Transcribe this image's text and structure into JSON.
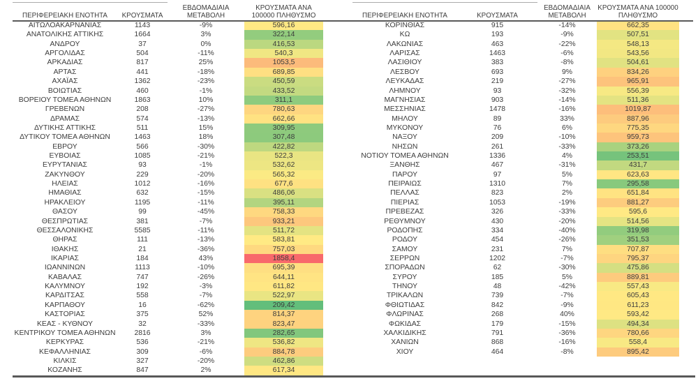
{
  "chart_data": {
    "type": "table",
    "columns": [
      "ΠΕΡΙΦΕΡΕΙΑΚΗ ΕΝΟΤΗΤΑ",
      "ΚΡΟΥΣΜΑΤΑ",
      "ΕΒΔΟΜΑΔΙΑΙΑ ΜΕΤΑΒΟΛΗ",
      "ΚΡΟΥΣΜΑΤΑ ΑΝΑ 100000 ΠΛΗΘΥΣΜΟ"
    ],
    "conditional_formatting": {
      "column": "ΚΡΟΥΣΜΑΤΑ ΑΝΑ 100000 ΠΛΗΘΥΣΜΟ",
      "type": "3-color-scale",
      "min_value": 209.42,
      "mid_value": 574.57,
      "max_value": 1858.4,
      "min_color": "#63BE7B",
      "mid_color": "#FFEB84",
      "max_color": "#F8696B"
    },
    "tables": [
      {
        "rows": [
          [
            "ΑΙΤΩΛΟΑΚΑΡΝΑΝΙΑΣ",
            "1143",
            "-9%",
            "596,16"
          ],
          [
            "ΑΝΑΤΟΛΙΚΗΣ ΑΤΤΙΚΗΣ",
            "1664",
            "3%",
            "322,14"
          ],
          [
            "ΑΝΔΡΟΥ",
            "37",
            "0%",
            "416,53"
          ],
          [
            "ΑΡΓΟΛΙΔΑΣ",
            "504",
            "-11%",
            "540,3"
          ],
          [
            "ΑΡΚΑΔΙΑΣ",
            "817",
            "25%",
            "1053,5"
          ],
          [
            "ΑΡΤΑΣ",
            "441",
            "-18%",
            "689,85"
          ],
          [
            "ΑΧΑΪΑΣ",
            "1362",
            "-23%",
            "450,59"
          ],
          [
            "ΒΟΙΩΤΙΑΣ",
            "460",
            "-1%",
            "433,52"
          ],
          [
            "ΒΟΡΕΙΟΥ ΤΟΜΕΑ ΑΘΗΝΩΝ",
            "1863",
            "10%",
            "311,1"
          ],
          [
            "ΓΡΕΒΕΝΩΝ",
            "208",
            "-27%",
            "780,63"
          ],
          [
            "ΔΡΑΜΑΣ",
            "574",
            "-13%",
            "662,66"
          ],
          [
            "ΔΥΤΙΚΗΣ ΑΤΤΙΚΗΣ",
            "511",
            "15%",
            "309,95"
          ],
          [
            "ΔΥΤΙΚΟΥ ΤΟΜΕΑ ΑΘΗΝΩΝ",
            "1463",
            "18%",
            "307,48"
          ],
          [
            "ΕΒΡΟΥ",
            "566",
            "-30%",
            "422,82"
          ],
          [
            "ΕΥΒΟΙΑΣ",
            "1085",
            "-21%",
            "522,3"
          ],
          [
            "ΕΥΡΥΤΑΝΙΑΣ",
            "93",
            "-1%",
            "532,62"
          ],
          [
            "ΖΑΚΥΝΘΟΥ",
            "229",
            "-20%",
            "565,32"
          ],
          [
            "ΗΛΕΙΑΣ",
            "1012",
            "-16%",
            "677,6"
          ],
          [
            "ΗΜΑΘΙΑΣ",
            "632",
            "-15%",
            "486,06"
          ],
          [
            "ΗΡΑΚΛΕΙΟΥ",
            "1195",
            "-11%",
            "395,11"
          ],
          [
            "ΘΑΣΟΥ",
            "99",
            "-45%",
            "758,33"
          ],
          [
            "ΘΕΣΠΡΩΤΙΑΣ",
            "381",
            "-7%",
            "933,21"
          ],
          [
            "ΘΕΣΣΑΛΟΝΙΚΗΣ",
            "5585",
            "-11%",
            "511,72"
          ],
          [
            "ΘΗΡΑΣ",
            "111",
            "-13%",
            "583,81"
          ],
          [
            "ΙΘΑΚΗΣ",
            "21",
            "-36%",
            "757,03"
          ],
          [
            "ΙΚΑΡΙΑΣ",
            "184",
            "43%",
            "1858,4"
          ],
          [
            "ΙΩΑΝΝΙΝΩΝ",
            "1113",
            "-10%",
            "695,39"
          ],
          [
            "ΚΑΒΑΛΑΣ",
            "747",
            "-26%",
            "644,11"
          ],
          [
            "ΚΑΛΥΜΝΟΥ",
            "192",
            "-3%",
            "611,82"
          ],
          [
            "ΚΑΡΔΙΤΣΑΣ",
            "558",
            "-7%",
            "522,97"
          ],
          [
            "ΚΑΡΠΑΘΟΥ",
            "16",
            "-62%",
            "209,42"
          ],
          [
            "ΚΑΣΤΟΡΙΑΣ",
            "375",
            "52%",
            "814,37"
          ],
          [
            "ΚΕΑΣ - ΚΥΘΝΟΥ",
            "32",
            "-33%",
            "823,47"
          ],
          [
            "ΚΕΝΤΡΙΚΟΥ ΤΟΜΕΑ ΑΘΗΝΩΝ",
            "2816",
            "3%",
            "282,65"
          ],
          [
            "ΚΕΡΚΥΡΑΣ",
            "536",
            "-21%",
            "536,82"
          ],
          [
            "ΚΕΦΑΛΛΗΝΙΑΣ",
            "309",
            "-6%",
            "884,78"
          ],
          [
            "ΚΙΛΚΙΣ",
            "327",
            "-20%",
            "462,86"
          ],
          [
            "ΚΟΖΑΝΗΣ",
            "847",
            "2%",
            "617,34"
          ]
        ]
      },
      {
        "rows": [
          [
            "ΚΟΡΙΝΘΙΑΣ",
            "915",
            "-14%",
            "662,35"
          ],
          [
            "ΚΩ",
            "193",
            "-9%",
            "507,51"
          ],
          [
            "ΛΑΚΩΝΙΑΣ",
            "463",
            "-22%",
            "548,13"
          ],
          [
            "ΛΑΡΙΣΑΣ",
            "1463",
            "-6%",
            "543,56"
          ],
          [
            "ΛΑΣΙΘΙΟΥ",
            "383",
            "-8%",
            "504,61"
          ],
          [
            "ΛΕΣΒΟΥ",
            "693",
            "9%",
            "834,26"
          ],
          [
            "ΛΕΥΚΑΔΑΣ",
            "219",
            "-27%",
            "965,91"
          ],
          [
            "ΛΗΜΝΟΥ",
            "93",
            "-32%",
            "556,39"
          ],
          [
            "ΜΑΓΝΗΣΙΑΣ",
            "903",
            "-14%",
            "511,36"
          ],
          [
            "ΜΕΣΣΗΝΙΑΣ",
            "1478",
            "-16%",
            "1019,87"
          ],
          [
            "ΜΗΛΟΥ",
            "89",
            "33%",
            "887,96"
          ],
          [
            "ΜΥΚΟΝΟΥ",
            "76",
            "6%",
            "775,35"
          ],
          [
            "ΝΑΞΟΥ",
            "209",
            "-10%",
            "959,73"
          ],
          [
            "ΝΗΣΩΝ",
            "261",
            "-33%",
            "373,26"
          ],
          [
            "ΝΟΤΙΟΥ ΤΟΜΕΑ ΑΘΗΝΩΝ",
            "1336",
            "4%",
            "253,51"
          ],
          [
            "ΞΑΝΘΗΣ",
            "467",
            "-31%",
            "431,7"
          ],
          [
            "ΠΑΡΟΥ",
            "97",
            "5%",
            "623,63"
          ],
          [
            "ΠΕΙΡΑΙΩΣ",
            "1310",
            "7%",
            "295,58"
          ],
          [
            "ΠΕΛΛΑΣ",
            "823",
            "2%",
            "651,84"
          ],
          [
            "ΠΙΕΡΙΑΣ",
            "1053",
            "-19%",
            "881,27"
          ],
          [
            "ΠΡΕΒΕΖΑΣ",
            "326",
            "-33%",
            "595,6"
          ],
          [
            "ΡΕΘΥΜΝΟΥ",
            "430",
            "-20%",
            "514,56"
          ],
          [
            "ΡΟΔΟΠΗΣ",
            "334",
            "-40%",
            "319,98"
          ],
          [
            "ΡΟΔΟΥ",
            "454",
            "-26%",
            "351,53"
          ],
          [
            "ΣΑΜΟΥ",
            "231",
            "7%",
            "707,87"
          ],
          [
            "ΣΕΡΡΩΝ",
            "1202",
            "-7%",
            "795,37"
          ],
          [
            "ΣΠΟΡΑΔΩΝ",
            "62",
            "-30%",
            "475,86"
          ],
          [
            "ΣΥΡΟΥ",
            "185",
            "5%",
            "889,81"
          ],
          [
            "ΤΗΝΟΥ",
            "48",
            "-42%",
            "557,43"
          ],
          [
            "ΤΡΙΚΑΛΩΝ",
            "739",
            "-7%",
            "605,43"
          ],
          [
            "ΦΘΙΩΤΙΔΑΣ",
            "842",
            "-9%",
            "611,23"
          ],
          [
            "ΦΛΩΡΙΝΑΣ",
            "268",
            "40%",
            "593,42"
          ],
          [
            "ΦΩΚΙΔΑΣ",
            "179",
            "-15%",
            "494,34"
          ],
          [
            "ΧΑΛΚΙΔΙΚΗΣ",
            "791",
            "-36%",
            "780,66"
          ],
          [
            "ΧΑΝΙΩΝ",
            "868",
            "-16%",
            "558,4"
          ],
          [
            "ΧΙΟΥ",
            "464",
            "-8%",
            "895,42"
          ]
        ]
      }
    ]
  }
}
